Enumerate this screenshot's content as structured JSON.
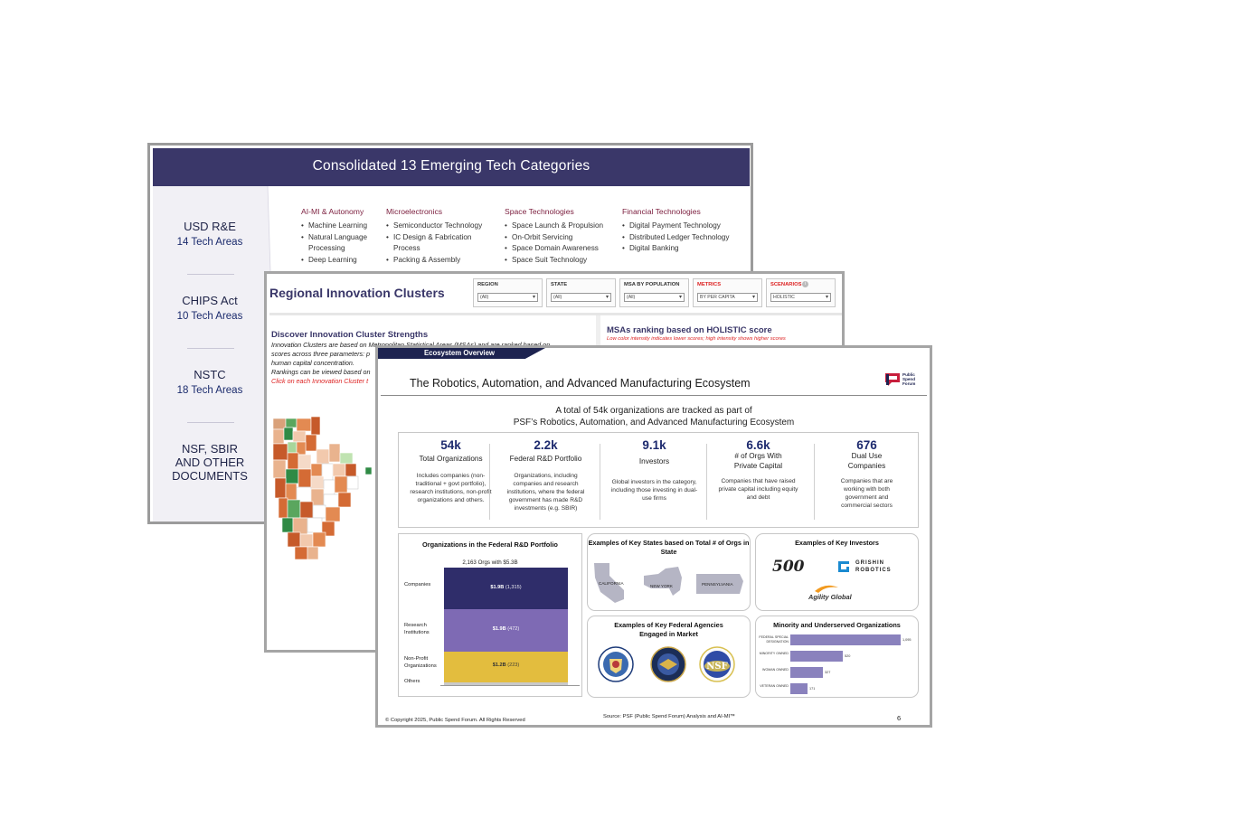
{
  "slide1": {
    "title": "Consolidated 13 Emerging Tech Categories",
    "sidebar": [
      {
        "name": "USD R&E",
        "sub": "14 Tech Areas"
      },
      {
        "name": "CHIPS Act",
        "sub": "10 Tech Areas"
      },
      {
        "name": "NSTC",
        "sub": "18 Tech Areas"
      },
      {
        "name": "NSF, SBIR AND OTHER DOCUMENTS",
        "sub": ""
      }
    ],
    "categories": [
      {
        "heading": "AI-MI & Autonomy",
        "items": [
          "Machine Learning",
          "Natural Language Processing",
          "Deep Learning"
        ]
      },
      {
        "heading": "Microelectronics",
        "items": [
          "Semiconductor Technology",
          "IC Design & Fabrication Process",
          "Packing & Assembly"
        ]
      },
      {
        "heading": "Space Technologies",
        "items": [
          "Space Launch & Propulsion",
          "On-Orbit Servicing",
          "Space Domain Awareness",
          "Space Suit Technology"
        ]
      },
      {
        "heading": "Financial Technologies",
        "items": [
          "Digital Payment Technology",
          "Distributed Ledger Technology",
          "Digital Banking"
        ]
      }
    ]
  },
  "slide2": {
    "title": "Regional Innovation Clusters",
    "filters": [
      {
        "label": "REGION",
        "value": "(All)",
        "highlight": false
      },
      {
        "label": "STATE",
        "value": "(All)",
        "highlight": false
      },
      {
        "label": "MSA BY POPULATION",
        "value": "(All)",
        "highlight": false
      },
      {
        "label": "METRICS",
        "value": "BY PER CAPITA",
        "highlight": true
      },
      {
        "label": "SCENARIOS",
        "value": "HOLISTIC",
        "highlight": true
      }
    ],
    "left_heading": "Discover Innovation Cluster Strengths",
    "left_lines": [
      "Innovation Clusters are based on Metropolitan Statistical Areas (MSAs) and are ranked based on",
      "scores across three parameters: p",
      "human capital concentration.",
      "Rankings can be viewed based on"
    ],
    "left_click": "Click on each Innovation Cluster t",
    "right_heading": "MSAs ranking based on HOLISTIC score",
    "right_note": "Low color intensity indicates lower scores; high intensity shows higher scores"
  },
  "slide3": {
    "tab": "Ecosystem Overview",
    "title": "The Robotics, Automation, and Advanced Manufacturing Ecosystem",
    "logo_text": [
      "Public",
      "Spend",
      "Forum"
    ],
    "intro_1": "A total of 54k organizations are tracked as part of",
    "intro_2": "PSF’s Robotics, Automation, and Advanced Manufacturing Ecosystem",
    "stats": [
      {
        "value": "54k",
        "label": "Total Organizations",
        "desc": "Includes companies (non-traditional + govt portfolio), research institutions, non-profit organizations and others."
      },
      {
        "value": "2.2k",
        "label": "Federal R&D Portfolio",
        "desc": "Organizations, including companies and research institutions, where the federal government has made R&D investments (e.g. SBIR)"
      },
      {
        "value": "9.1k",
        "label": "Investors",
        "desc": "Global investors in the category, including those investing in dual-use firms"
      },
      {
        "value": "6.6k",
        "label": "# of Orgs With Private Capital",
        "desc": "Companies that have raised private capital including equity and debt"
      },
      {
        "value": "676",
        "label": "Dual Use Companies",
        "desc": "Companies that are working with both government and commercial sectors"
      }
    ],
    "federal": {
      "title": "Organizations in the Federal R&D Portfolio",
      "subtitle": "2,163 Orgs with $5.3B",
      "segments": [
        {
          "category": "Companies",
          "value": "$1.9B",
          "count": "(1,315)",
          "color": "#2f2d6a"
        },
        {
          "category": "Research Institutions",
          "value": "$1.9B",
          "count": "(472)",
          "color": "#7e6ab4"
        },
        {
          "category": "Non-Profit Organizations",
          "value": "$1.2B",
          "count": "(223)",
          "color": "#e3bd3e"
        },
        {
          "category": "Others",
          "value": "",
          "count": "",
          "color": "#c9c9c9"
        }
      ]
    },
    "states": {
      "title": "Examples of Key States based on Total # of Orgs in State",
      "names": [
        "CALIFORNIA",
        "NEW YORK",
        "PENNSYLVANIA"
      ]
    },
    "investors": {
      "title": "Examples of Key Investors",
      "names": [
        "500",
        "GRISHIN",
        "ROBOTICS",
        "Agility Global"
      ]
    },
    "agencies": {
      "title": "Examples of Key Federal Agencies Engaged in Market",
      "seal_text": "NSF"
    },
    "minority": {
      "title": "Minority and Underserved Organizations",
      "rows": [
        {
          "label": "FEDERAL SPECIAL DESIGNATION",
          "value": 1095,
          "text": "1,095"
        },
        {
          "label": "MINORITY OWNED",
          "value": 520,
          "text": "520"
        },
        {
          "label": "WOMAN OWNED",
          "value": 327,
          "text": "327"
        },
        {
          "label": "VETERAN OWNED",
          "value": 171,
          "text": "171"
        }
      ]
    },
    "footer": {
      "copyright": "© Copyright 2025, Public Spend Forum. All Rights Reserved",
      "source": "Source:  PSF (Public Spend Forum) Analysis and AI-MI™",
      "page": "6"
    },
    "colors": {
      "navy": "#1d2350",
      "purple": "#3a3769",
      "bar": "#8a82bd"
    }
  }
}
